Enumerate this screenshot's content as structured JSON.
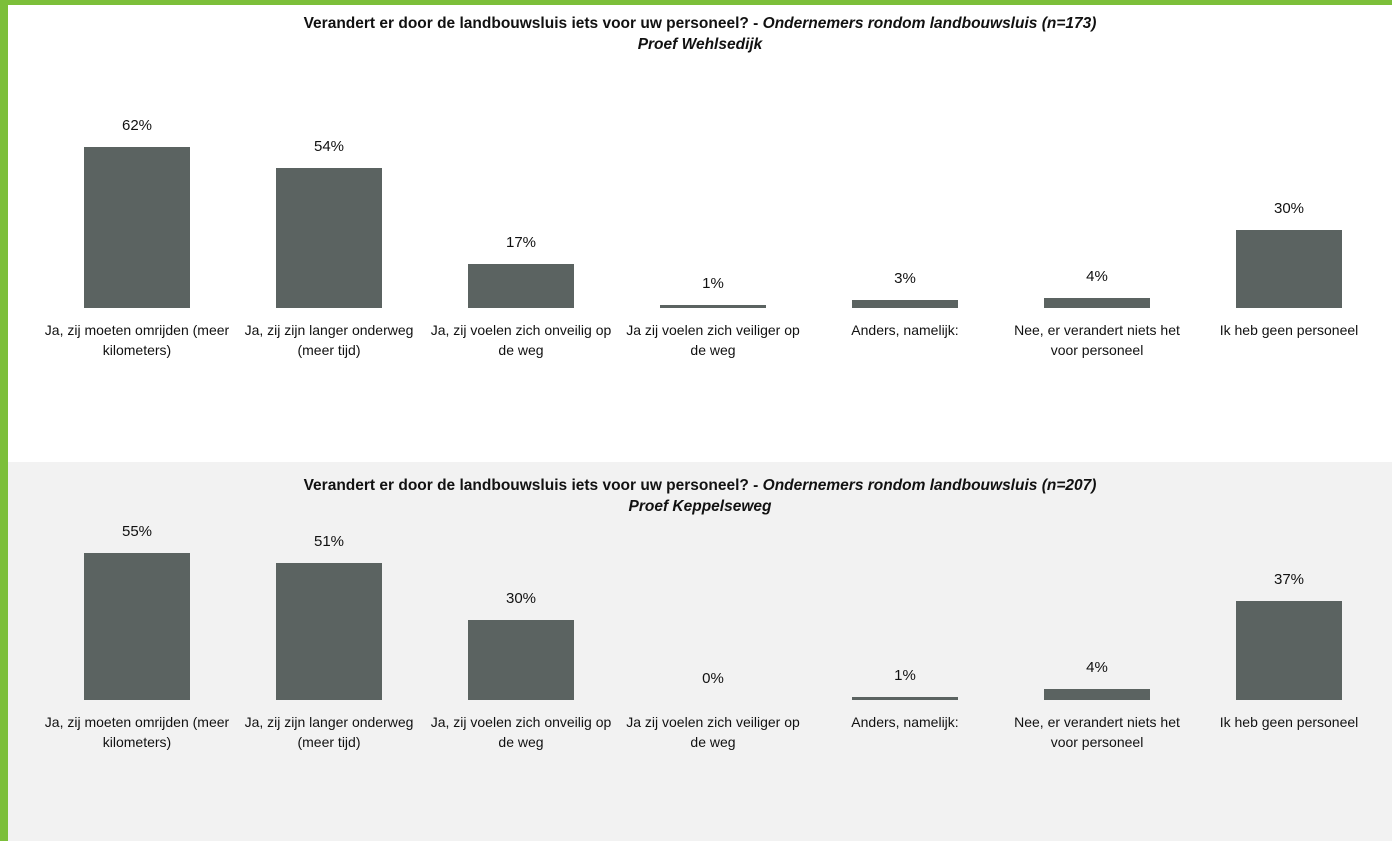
{
  "chart_data": [
    {
      "type": "bar",
      "title": "Verandert er door de landbouwsluis iets voor uw personeel? -",
      "title_italic": "Ondernemers rondom landbouwsluis (n=173)",
      "subtitle": "Proef Wehlsedijk",
      "categories": [
        "Ja, zij moeten omrijden (meer kilometers)",
        "Ja, zij zijn langer onderweg (meer tijd)",
        "Ja, zij voelen zich onveilig op de weg",
        "Ja zij voelen zich veiliger op de weg",
        "Anders, namelijk:",
        "Nee, er verandert niets het voor personeel",
        "Ik heb geen personeel"
      ],
      "values": [
        62,
        54,
        17,
        1,
        3,
        4,
        30
      ],
      "value_labels": [
        "62%",
        "54%",
        "17%",
        "1%",
        "3%",
        "4%",
        "30%"
      ],
      "color": "#5b6361",
      "ylim": [
        0,
        100
      ]
    },
    {
      "type": "bar",
      "title": "Verandert er door de landbouwsluis iets voor uw personeel? -",
      "title_italic": "Ondernemers rondom landbouwsluis (n=207)",
      "subtitle": "Proef Keppelseweg",
      "categories": [
        "Ja, zij moeten omrijden (meer kilometers)",
        "Ja, zij zijn langer onderweg (meer tijd)",
        "Ja, zij voelen zich onveilig op de weg",
        "Ja zij voelen zich veiliger op de weg",
        "Anders, namelijk:",
        "Nee, er verandert niets het voor personeel",
        "Ik heb geen personeel"
      ],
      "values": [
        55,
        51,
        30,
        0,
        1,
        4,
        37
      ],
      "value_labels": [
        "55%",
        "51%",
        "30%",
        "0%",
        "1%",
        "4%",
        "37%"
      ],
      "color": "#5b6361",
      "ylim": [
        0,
        100
      ]
    }
  ]
}
